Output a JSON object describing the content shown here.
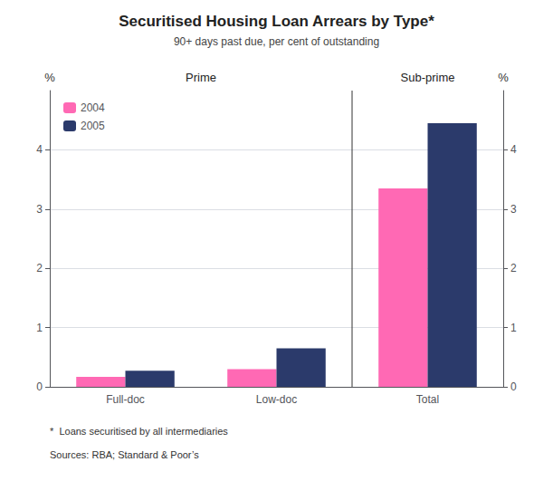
{
  "chart_data": {
    "type": "bar",
    "title": "Securitised Housing Loan Arrears by Type*",
    "subtitle": "90+ days past due, per cent of outstanding",
    "categories": [
      "Full-doc",
      "Low-doc",
      "Total"
    ],
    "series": [
      {
        "name": "2004",
        "color": "#FF69B4",
        "values": [
          0.17,
          0.3,
          3.35
        ]
      },
      {
        "name": "2005",
        "color": "#2B3A6B",
        "values": [
          0.27,
          0.65,
          4.45
        ]
      }
    ],
    "ylabel": "%",
    "y2label": "%",
    "ylim": [
      0,
      5
    ],
    "yticks": [
      0,
      1,
      2,
      3,
      4
    ],
    "y2lim": [
      0,
      5
    ],
    "y2ticks": [
      0,
      1,
      2,
      3,
      4
    ],
    "annotations": [
      "Prime",
      "Sub-prime"
    ],
    "footnotes": [
      "*  Loans securitised by all intermediaries",
      "Sources: RBA; Standard & Poor’s"
    ],
    "grid": true,
    "legend": "upper left"
  }
}
